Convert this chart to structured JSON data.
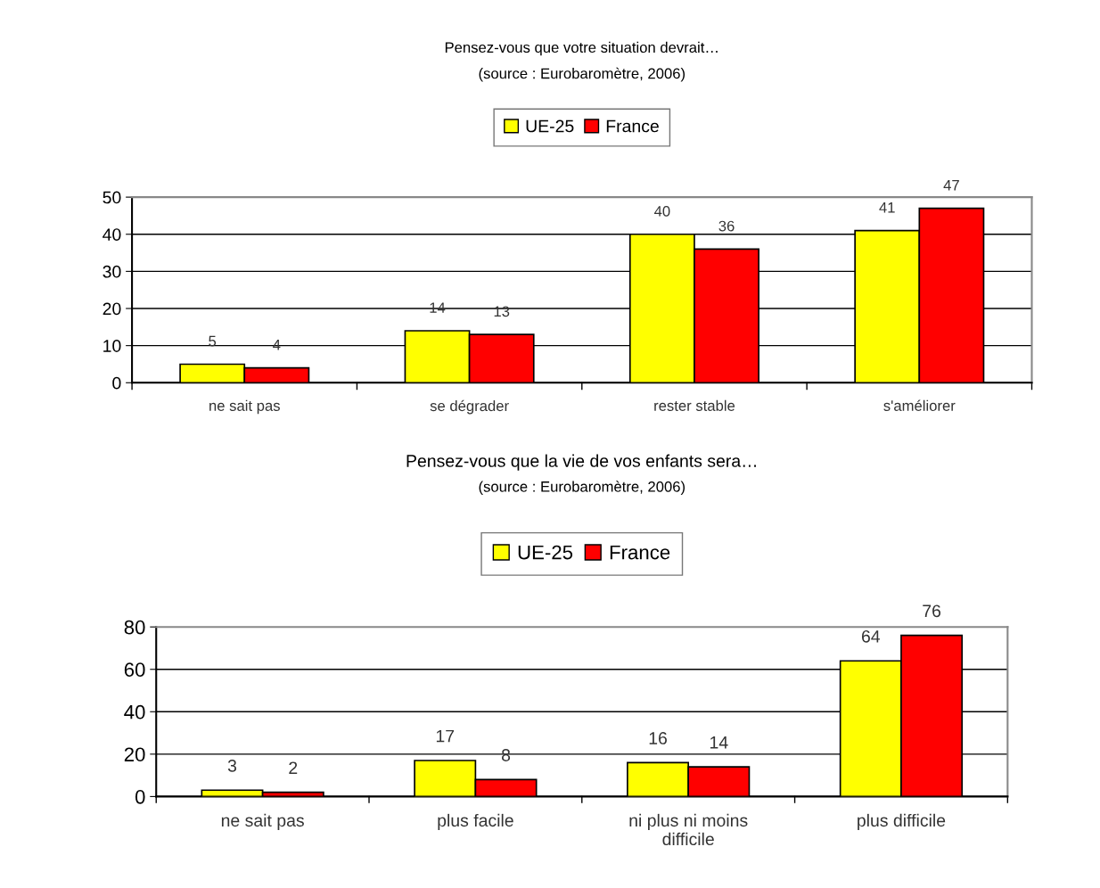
{
  "chart_data": [
    {
      "type": "bar",
      "title": "Pensez-vous que votre situation devrait…",
      "subtitle": "(source : Eurobaromètre, 2006)",
      "categories": [
        "ne sait pas",
        "se dégrader",
        "rester stable",
        "s'améliorer"
      ],
      "series": [
        {
          "name": "UE-25",
          "color": "#ffff00",
          "values": [
            5,
            14,
            40,
            41
          ]
        },
        {
          "name": "France",
          "color": "#ff0000",
          "values": [
            4,
            13,
            36,
            47
          ]
        }
      ],
      "ylim": [
        0,
        50
      ],
      "yticks": [
        0,
        10,
        20,
        30,
        40,
        50
      ],
      "grid": "y",
      "legend": "top",
      "data_labels": true
    },
    {
      "type": "bar",
      "title": "Pensez-vous que la vie de vos enfants sera…",
      "subtitle": "(source : Eurobaromètre, 2006)",
      "categories": [
        "ne sait pas",
        "plus facile",
        "ni plus ni moins\ndifficile",
        "plus difficile"
      ],
      "series": [
        {
          "name": "UE-25",
          "color": "#ffff00",
          "values": [
            3,
            17,
            16,
            64
          ]
        },
        {
          "name": "France",
          "color": "#ff0000",
          "values": [
            2,
            8,
            14,
            76
          ]
        }
      ],
      "ylim": [
        0,
        80
      ],
      "yticks": [
        0,
        20,
        40,
        60,
        80
      ],
      "grid": "y",
      "legend": "top",
      "data_labels": true
    }
  ]
}
